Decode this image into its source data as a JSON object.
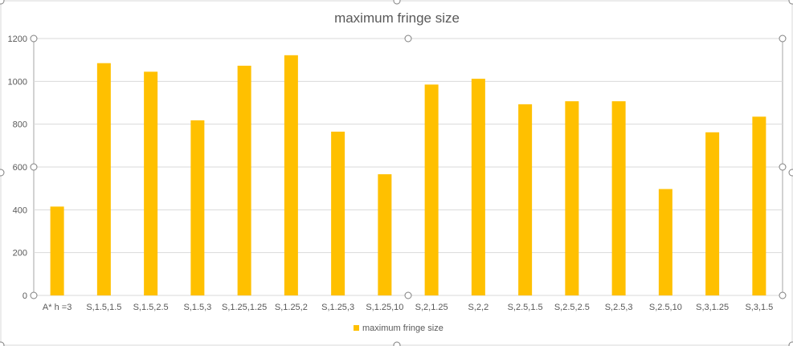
{
  "chart_data": {
    "type": "bar",
    "title": "maximum fringe size",
    "xlabel": "",
    "ylabel": "",
    "categories": [
      "A* h =3",
      "S,1.5,1.5",
      "S,1.5,2.5",
      "S,1.5,3",
      "S,1.25,1.25",
      "S,1.25,2",
      "S,1.25,3",
      "S,1.25,10",
      "S,2,1.25",
      "S,2,2",
      "S,2.5,1.5",
      "S,2.5,2.5",
      "S,2.5,3",
      "S,2.5,10",
      "S,3,1.25",
      "S,3,1.5"
    ],
    "series": [
      {
        "name": "maximum fringe size",
        "color": "#FFC000",
        "values": [
          415,
          1085,
          1045,
          818,
          1073,
          1122,
          765,
          566,
          985,
          1012,
          893,
          907,
          907,
          497,
          762,
          835
        ]
      }
    ],
    "ylim": [
      0,
      1200
    ],
    "yticks": [
      0,
      200,
      400,
      600,
      800,
      1000,
      1200
    ],
    "grid": true,
    "legend_position": "bottom"
  }
}
